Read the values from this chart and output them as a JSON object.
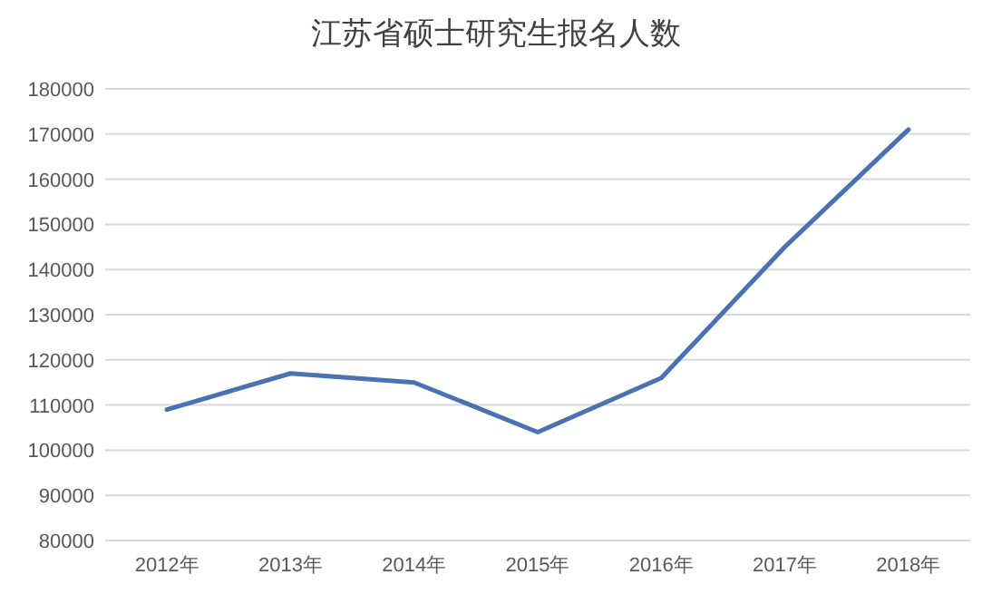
{
  "chart_data": {
    "type": "line",
    "title": "江苏省硕士研究生报名人数",
    "categories": [
      "2012年",
      "2013年",
      "2014年",
      "2015年",
      "2016年",
      "2017年",
      "2018年"
    ],
    "series": [
      {
        "color": "#4a72b0",
        "values": [
          109000,
          117000,
          115000,
          104000,
          116000,
          145000,
          171000
        ]
      }
    ],
    "ylim": [
      80000,
      180000
    ],
    "yticks": [
      80000,
      90000,
      100000,
      110000,
      120000,
      130000,
      140000,
      150000,
      160000,
      170000,
      180000
    ],
    "grid": "y",
    "marker": "none",
    "line_style": "solid"
  }
}
